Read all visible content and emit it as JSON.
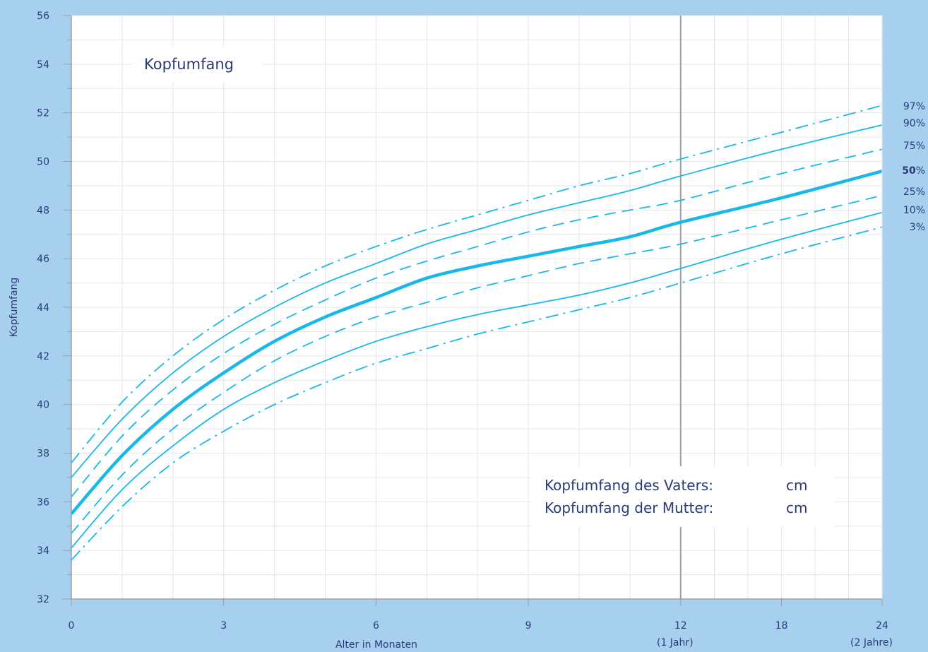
{
  "chart_data": {
    "type": "line",
    "title": "Kopfumfang",
    "xlabel": "Alter in Monaten",
    "ylabel": "Kopfumfang",
    "ylim": [
      32,
      56
    ],
    "y_ticks": [
      32,
      34,
      36,
      38,
      40,
      42,
      44,
      46,
      48,
      50,
      52,
      54,
      56
    ],
    "x_ticks": [
      {
        "month": 0,
        "label": "0",
        "sub": ""
      },
      {
        "month": 3,
        "label": "3",
        "sub": ""
      },
      {
        "month": 6,
        "label": "6",
        "sub": ""
      },
      {
        "month": 9,
        "label": "9",
        "sub": ""
      },
      {
        "month": 12,
        "label": "12",
        "sub": "(1 Jahr)"
      },
      {
        "month": 18,
        "label": "18",
        "sub": ""
      },
      {
        "month": 24,
        "label": "24",
        "sub": "(2 Jahre)"
      }
    ],
    "grid": true,
    "series": [
      {
        "name": "97",
        "style": "dashdot",
        "weight": "normal",
        "x": [
          0,
          1,
          2,
          3,
          4,
          5,
          6,
          7,
          8,
          9,
          10,
          11,
          12,
          18,
          24
        ],
        "y": [
          37.6,
          40.1,
          42.0,
          43.5,
          44.7,
          45.7,
          46.5,
          47.2,
          47.8,
          48.4,
          49.0,
          49.5,
          50.1,
          51.2,
          52.3
        ]
      },
      {
        "name": "90",
        "style": "solid",
        "weight": "normal",
        "x": [
          0,
          1,
          2,
          3,
          4,
          5,
          6,
          7,
          8,
          9,
          10,
          11,
          12,
          18,
          24
        ],
        "y": [
          37.0,
          39.4,
          41.3,
          42.8,
          44.0,
          45.0,
          45.8,
          46.6,
          47.2,
          47.8,
          48.3,
          48.8,
          49.4,
          50.5,
          51.5
        ]
      },
      {
        "name": "75",
        "style": "dashed",
        "weight": "normal",
        "x": [
          0,
          1,
          2,
          3,
          4,
          5,
          6,
          7,
          8,
          9,
          10,
          11,
          12,
          18,
          24
        ],
        "y": [
          36.2,
          38.7,
          40.6,
          42.1,
          43.3,
          44.3,
          45.2,
          45.9,
          46.5,
          47.1,
          47.6,
          48.0,
          48.4,
          49.5,
          50.5
        ]
      },
      {
        "name": "50",
        "style": "solid",
        "weight": "bold",
        "x": [
          0,
          1,
          2,
          3,
          4,
          5,
          6,
          7,
          8,
          9,
          10,
          11,
          12,
          18,
          24
        ],
        "y": [
          35.5,
          37.9,
          39.8,
          41.3,
          42.6,
          43.6,
          44.4,
          45.2,
          45.7,
          46.1,
          46.5,
          46.9,
          47.5,
          48.5,
          49.6
        ]
      },
      {
        "name": "25",
        "style": "dashed",
        "weight": "normal",
        "x": [
          0,
          1,
          2,
          3,
          4,
          5,
          6,
          7,
          8,
          9,
          10,
          11,
          12,
          18,
          24
        ],
        "y": [
          34.7,
          37.1,
          39.0,
          40.5,
          41.8,
          42.8,
          43.6,
          44.2,
          44.8,
          45.3,
          45.8,
          46.2,
          46.6,
          47.6,
          48.6
        ]
      },
      {
        "name": "10",
        "style": "solid",
        "weight": "normal",
        "x": [
          0,
          1,
          2,
          3,
          4,
          5,
          6,
          7,
          8,
          9,
          10,
          11,
          12,
          18,
          24
        ],
        "y": [
          34.1,
          36.5,
          38.3,
          39.8,
          40.9,
          41.8,
          42.6,
          43.2,
          43.7,
          44.1,
          44.5,
          45.0,
          45.6,
          46.8,
          47.9
        ]
      },
      {
        "name": "3",
        "style": "dashdot",
        "weight": "normal",
        "x": [
          0,
          1,
          2,
          3,
          4,
          5,
          6,
          7,
          8,
          9,
          10,
          11,
          12,
          18,
          24
        ],
        "y": [
          33.6,
          35.8,
          37.6,
          38.9,
          40.0,
          40.9,
          41.7,
          42.3,
          42.9,
          43.4,
          43.9,
          44.4,
          45.0,
          46.2,
          47.3
        ]
      }
    ],
    "percentile_labels": [
      {
        "text": "97",
        "unit": "%",
        "bold": false
      },
      {
        "text": "90",
        "unit": "%",
        "bold": false
      },
      {
        "text": "75",
        "unit": "%",
        "bold": false
      },
      {
        "text": "50",
        "unit": "%",
        "bold": true
      },
      {
        "text": "25",
        "unit": "%",
        "bold": false
      },
      {
        "text": "10",
        "unit": "%",
        "bold": false
      },
      {
        "text": "3",
        "unit": "%",
        "bold": false
      }
    ],
    "annotations": {
      "father_label": "Kopfumfang des Vaters:",
      "father_unit": "cm",
      "mother_label": "Kopfumfang der Mutter:",
      "mother_unit": "cm"
    }
  },
  "colors": {
    "background": "#a6d0ee",
    "plot": "#ffffff",
    "grid": "#e3e6ea",
    "curve": "#1ab8ea",
    "text": "#2b3b7a",
    "year_line": "#9aa0a6"
  }
}
